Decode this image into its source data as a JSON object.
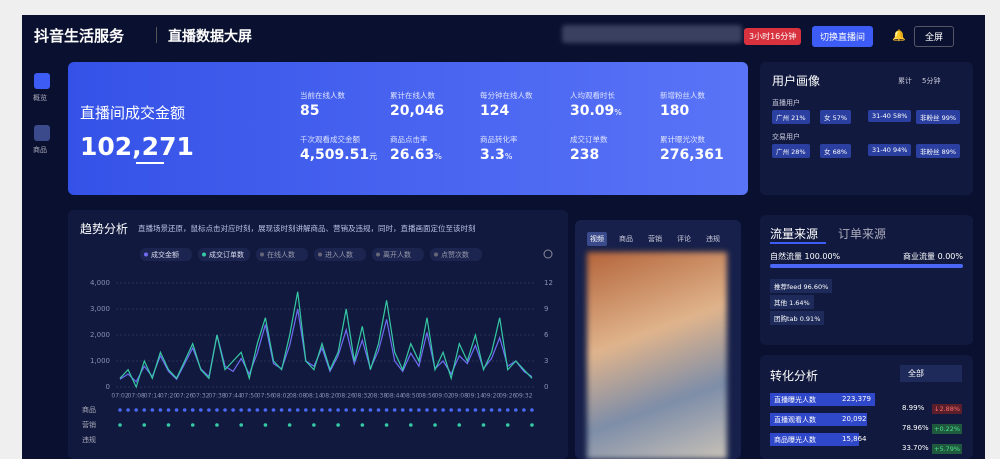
{
  "header": {
    "brand": "抖音生活服务",
    "title": "直播数据大屏",
    "live_badge": "3小时16分钟",
    "switch_button": "切换直播间",
    "fullscreen": "全屏"
  },
  "sidebar": [
    "概览",
    "商品"
  ],
  "kpi": {
    "label": "直播间成交金额",
    "value": "102,271",
    "metrics": [
      {
        "label": "当前在线人数",
        "value": "85"
      },
      {
        "label": "累计在线人数",
        "value": "20,046"
      },
      {
        "label": "每分钟在线人数",
        "value": "124"
      },
      {
        "label": "人均观看时长",
        "value": "30.09",
        "unit": "%"
      },
      {
        "label": "新增粉丝人数",
        "value": "180"
      },
      {
        "label": "千次观看成交金额",
        "value": "4,509.51",
        "unit": "元"
      },
      {
        "label": "商品点击率",
        "value": "26.63",
        "unit": "%"
      },
      {
        "label": "商品转化率",
        "value": "3.3",
        "unit": "%"
      },
      {
        "label": "成交订单数",
        "value": "238"
      },
      {
        "label": "累计曝光次数",
        "value": "276,361"
      }
    ]
  },
  "user_portrait": {
    "title": "用户画像",
    "tabs": [
      "累计",
      "5分钟"
    ],
    "groups": [
      {
        "name": "直播用户",
        "tags": [
          "广州 21%",
          "女 57%",
          "31-40 58%",
          "非粉丝 99%"
        ]
      },
      {
        "name": "交易用户",
        "tags": [
          "广州 28%",
          "女 68%",
          "31-40 94%",
          "非粉丝 89%"
        ]
      }
    ]
  },
  "trend": {
    "title": "趋势分析",
    "description": "直播场景还原，鼠标点击对应时刻，展现该时刻讲解商品、营销及违规，同时，直播画面定位至该时刻",
    "inactive_legend": [
      "在线人数",
      "进入人数",
      "离开人数",
      "点赞次数"
    ],
    "event_rows": [
      "商品",
      "营销",
      "违规"
    ]
  },
  "chart_data": {
    "type": "line",
    "categories": [
      "07:02",
      null,
      "07:08",
      null,
      "07:14",
      null,
      "07:20",
      null,
      "07:26",
      null,
      "07:32",
      null,
      "07:38",
      null,
      "07:44",
      null,
      "07:50",
      null,
      "07:56",
      null,
      "08:02",
      null,
      "08:08",
      null,
      "08:14",
      null,
      "08:20",
      null,
      "08:26",
      null,
      "08:32",
      null,
      "08:38",
      null,
      "08:44",
      null,
      "08:50",
      null,
      "08:56",
      null,
      "09:02",
      null,
      "09:08",
      null,
      "09:14",
      null,
      "09:20",
      null,
      "09:26",
      null,
      "09:32",
      null
    ],
    "series": [
      {
        "name": "成交金额",
        "color": "#6f6cf3",
        "values": [
          300,
          500,
          200,
          800,
          400,
          1200,
          600,
          300,
          900,
          1500,
          700,
          400,
          2000,
          800,
          600,
          1100,
          500,
          1300,
          2400,
          900,
          700,
          1600,
          3000,
          1000,
          800,
          1500,
          600,
          1200,
          2200,
          900,
          1800,
          700,
          1400,
          2600,
          1000,
          600,
          1300,
          800,
          2100,
          700,
          1000,
          500,
          1200,
          900,
          1600,
          700,
          1100,
          1900,
          800,
          1000,
          600,
          400
        ]
      },
      {
        "name": "成交订单数",
        "color": "#36c9a5",
        "axis": "y2",
        "values": [
          1,
          2,
          0,
          3,
          1,
          4,
          2,
          1,
          3,
          5,
          2,
          1,
          6,
          2,
          3,
          4,
          1,
          5,
          8,
          3,
          2,
          6,
          11,
          3,
          2,
          5,
          2,
          4,
          9,
          3,
          7,
          2,
          5,
          10,
          4,
          2,
          5,
          3,
          8,
          2,
          4,
          1,
          5,
          3,
          6,
          2,
          4,
          8,
          2,
          3,
          2,
          1
        ]
      }
    ],
    "ylim": [
      0,
      4000
    ],
    "yticks": [
      0,
      {
        "value": 1000,
        "label": "1,000"
      },
      {
        "value": 2000,
        "label": "2,000"
      },
      {
        "value": 3000,
        "label": "3,000"
      },
      {
        "value": 4000,
        "label": "4,000"
      }
    ],
    "y2lim": [
      0,
      12
    ],
    "y2ticks": [
      0,
      3,
      6,
      9,
      12
    ],
    "grid": true
  },
  "video": {
    "tabs": [
      "视频",
      "商品",
      "营销",
      "评论",
      "违规"
    ]
  },
  "traffic": {
    "title": "流量来源",
    "alt_title": "订单来源",
    "natural": "自然流量 100.00%",
    "commercial": "商业流量 0.00%",
    "items": [
      "推荐feed 96.60%",
      "其他 1.64%",
      "团购tab 0.91%"
    ]
  },
  "conversion": {
    "title": "转化分析",
    "filter": "全部",
    "rows": [
      {
        "label": "直播曝光人数",
        "value": "223,379",
        "rate": "8.99%",
        "change": "↓2.88%"
      },
      {
        "label": "直播观看人数",
        "value": "20,092",
        "rate": "78.96%",
        "change": "+0.22%"
      },
      {
        "label": "商品曝光人数",
        "value": "15,864",
        "rate": "33.70%",
        "change": "+5.79%"
      }
    ]
  }
}
